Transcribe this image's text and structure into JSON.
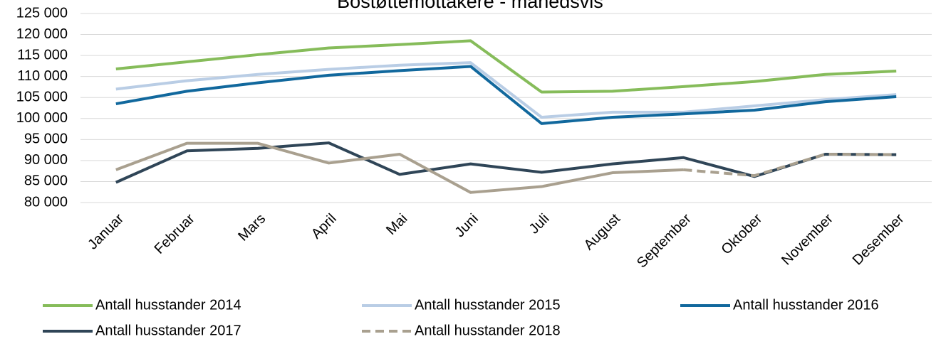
{
  "chart_data": {
    "type": "line",
    "title": "Bostøttemottakere - månedsvis",
    "categories": [
      "Januar",
      "Februar",
      "Mars",
      "April",
      "Mai",
      "Juni",
      "Juli",
      "August",
      "September",
      "Oktober",
      "November",
      "Desember"
    ],
    "series": [
      {
        "name": "Antall husstander 2014",
        "color": "#86bc5a",
        "values": [
          111800,
          113500,
          115200,
          116800,
          117600,
          118500,
          106300,
          106500,
          107600,
          108800,
          110500,
          111300
        ]
      },
      {
        "name": "Antall husstander 2015",
        "color": "#b9cde5",
        "values": [
          107000,
          109000,
          110500,
          111700,
          112700,
          113300,
          100300,
          101500,
          101500,
          103000,
          104500,
          105700
        ]
      },
      {
        "name": "Antall husstander 2016",
        "color": "#11689d",
        "values": [
          103500,
          106500,
          108500,
          110300,
          111400,
          112400,
          98800,
          100300,
          101100,
          102000,
          104000,
          105200
        ]
      },
      {
        "name": "Antall husstander 2017",
        "color": "#2f4557",
        "values": [
          84800,
          92300,
          92900,
          94200,
          86700,
          89200,
          87200,
          89200,
          90700,
          86200,
          91500,
          91400
        ]
      },
      {
        "name": "Antall husstander 2018",
        "color": "#a9a08f",
        "dashed_from": "September",
        "values": [
          87800,
          94100,
          94100,
          89400,
          91500,
          82400,
          83800,
          87100,
          87800,
          86400,
          91500,
          91400
        ]
      }
    ],
    "ylim": [
      80000,
      125000
    ],
    "yticks": [
      {
        "value": 80000,
        "label": "80 000"
      },
      {
        "value": 85000,
        "label": "85 000"
      },
      {
        "value": 90000,
        "label": "90 000"
      },
      {
        "value": 95000,
        "label": "95 000"
      },
      {
        "value": 100000,
        "label": "100 000"
      },
      {
        "value": 105000,
        "label": "105 000"
      },
      {
        "value": 110000,
        "label": "110 000"
      },
      {
        "value": 115000,
        "label": "115 000"
      },
      {
        "value": 120000,
        "label": "120 000"
      },
      {
        "value": 125000,
        "label": "125 000"
      }
    ],
    "grid": true,
    "legend": "bottom"
  }
}
